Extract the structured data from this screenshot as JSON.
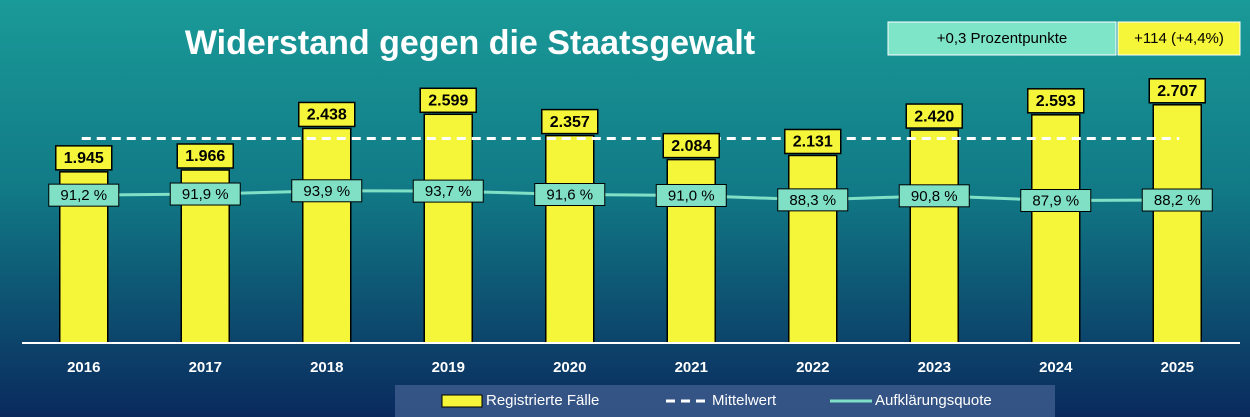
{
  "chart_data": {
    "type": "bar_line",
    "title": "Widerstand gegen die Staatsgewalt",
    "annotations": [
      "+0,3 Prozentpunkte",
      "+114 (+4,4%)"
    ],
    "categories": [
      "2016",
      "2017",
      "2018",
      "2019",
      "2020",
      "2021",
      "2022",
      "2023",
      "2024",
      "2025"
    ],
    "series": [
      {
        "name": "Registrierte Fälle",
        "color": "#f5f53a",
        "values": [
          1945,
          1966,
          2438,
          2599,
          2357,
          2084,
          2131,
          2420,
          2593,
          2707
        ],
        "value_labels": [
          "1.945",
          "1.966",
          "2.438",
          "2.599",
          "2.357",
          "2.084",
          "2.131",
          "2.420",
          "2.593",
          "2.707"
        ]
      },
      {
        "name": "Aufklärungsquote",
        "color": "#7fe0c6",
        "axis": "y2",
        "values": [
          91.2,
          91.9,
          93.9,
          93.7,
          91.6,
          91.0,
          88.3,
          90.8,
          87.9,
          88.2
        ],
        "value_labels": [
          "91,2 %",
          "91,9 %",
          "93,9 %",
          "93,7 %",
          "91,6 %",
          "91,0 %",
          "88,3 %",
          "90,8 %",
          "87,9 %",
          "88,2 %"
        ]
      }
    ],
    "reference_line": {
      "name": "Mittelwert",
      "value": 2324,
      "color": "#ffffff"
    },
    "ylim": [
      0,
      3500
    ],
    "y2lim": [
      0,
      190
    ]
  }
}
